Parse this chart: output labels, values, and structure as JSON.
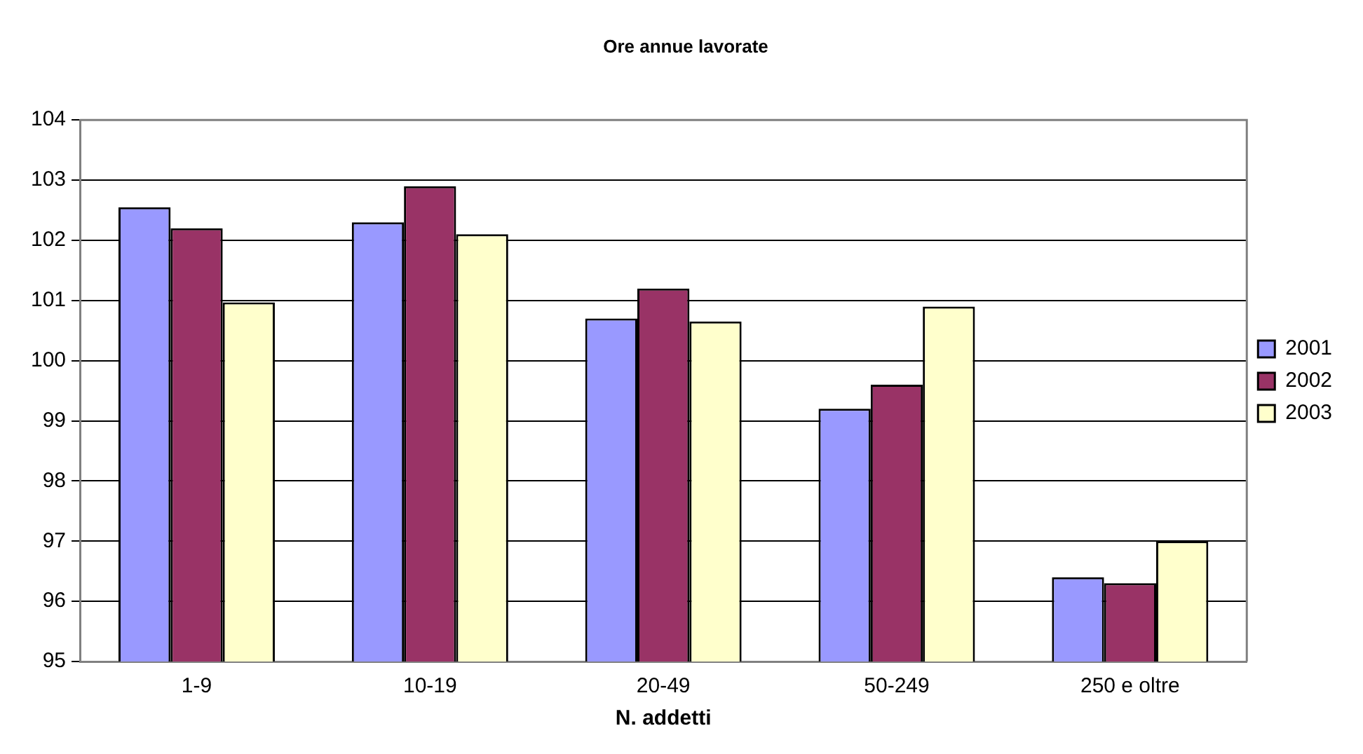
{
  "chart_data": {
    "type": "bar",
    "title": "Ore annue lavorate",
    "xlabel": "N. addetti",
    "categories": [
      "1-9",
      "10-19",
      "20-49",
      "50-249",
      "250 e oltre"
    ],
    "series": [
      {
        "name": "2001",
        "color": "#9999ff",
        "values": [
          102.55,
          102.3,
          100.7,
          99.2,
          96.4
        ]
      },
      {
        "name": "2002",
        "color": "#993366",
        "values": [
          102.2,
          102.9,
          101.2,
          99.6,
          96.3
        ]
      },
      {
        "name": "2003",
        "color": "#ffffcc",
        "values": [
          100.97,
          102.1,
          100.65,
          100.9,
          97.0
        ]
      }
    ],
    "ylim": [
      95,
      104
    ],
    "yticks": [
      95,
      96,
      97,
      98,
      99,
      100,
      101,
      102,
      103,
      104
    ],
    "grid": "y",
    "legend": "right"
  }
}
